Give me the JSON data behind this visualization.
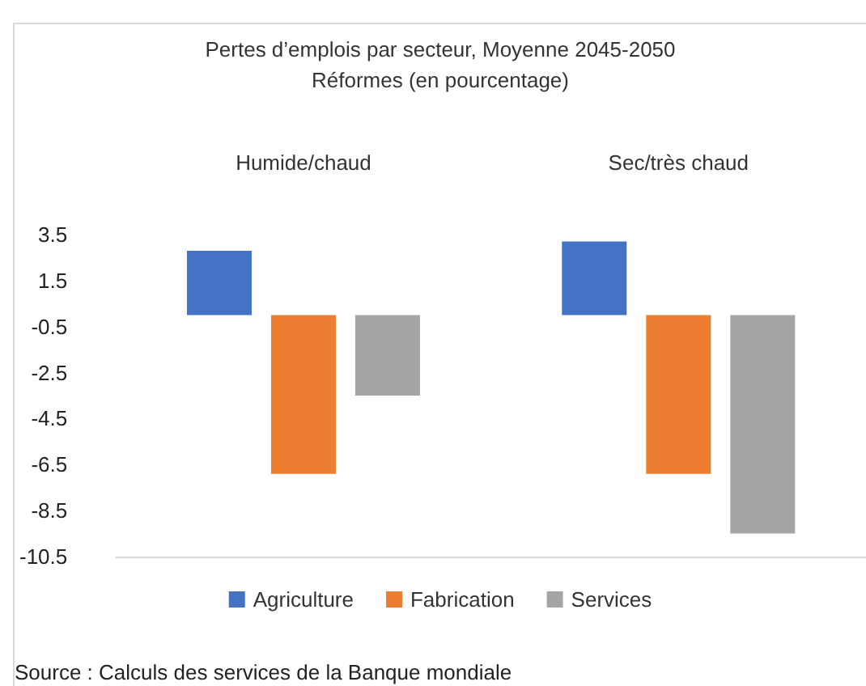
{
  "chart_data": {
    "type": "bar",
    "title": "Pertes d’emplois par secteur, Moyenne 2045-2050",
    "subtitle": "Réformes (en pourcentage)",
    "categories": [
      "Humide/chaud",
      "Sec/très chaud"
    ],
    "series": [
      {
        "name": "Agriculture",
        "color": "#4472c4",
        "values": [
          2.8,
          3.2
        ]
      },
      {
        "name": "Fabrication",
        "color": "#ed7d31",
        "values": [
          -6.9,
          -6.9
        ]
      },
      {
        "name": "Services",
        "color": "#a5a5a5",
        "values": [
          -3.5,
          -9.5
        ]
      }
    ],
    "ylim": [
      -10.5,
      3.5
    ],
    "yticks": [
      3.5,
      1.5,
      -0.5,
      -2.5,
      -4.5,
      -6.5,
      -8.5,
      -10.5
    ],
    "grid": false,
    "legend": "bottom",
    "annotations": [
      "Source : Calculs des services de la Banque mondiale"
    ]
  }
}
